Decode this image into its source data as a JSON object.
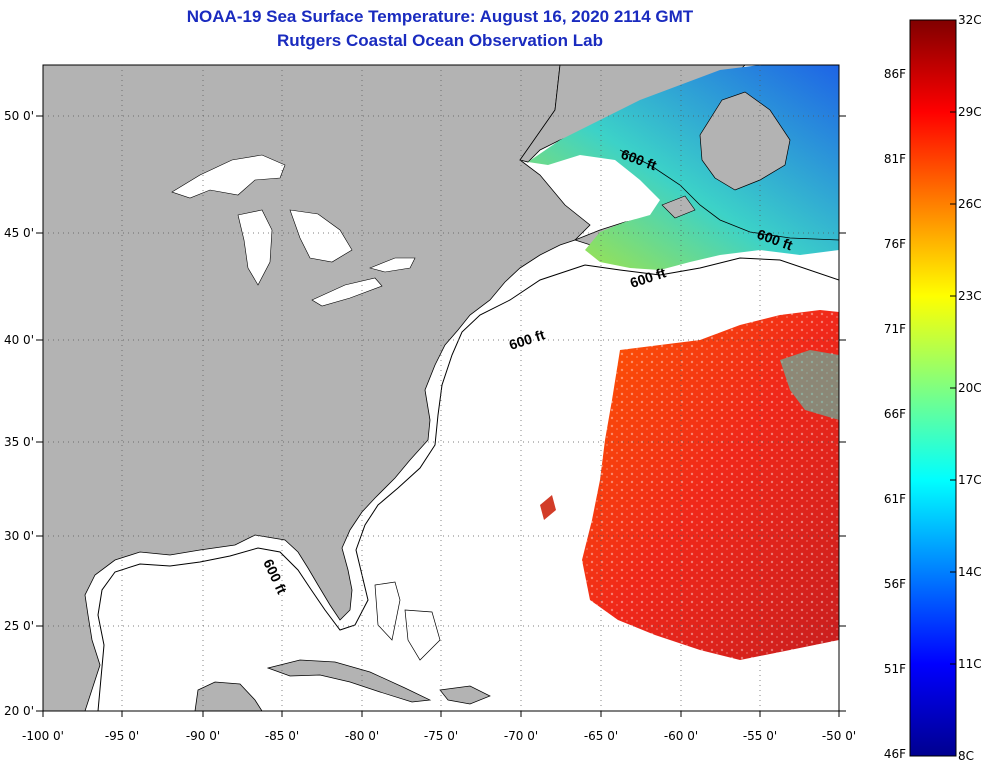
{
  "title": {
    "line1": "NOAA-19 Sea Surface Temperature:  August 16, 2020 2114 GMT",
    "line2": "Rutgers Coastal Ocean Observation Lab"
  },
  "axes": {
    "lon_labels": [
      "-100 0'",
      "-95 0'",
      "-90 0'",
      "-85 0'",
      "-80 0'",
      "-75 0'",
      "-70 0'",
      "-65 0'",
      "-60 0'",
      "-55 0'",
      "-50 0'"
    ],
    "lat_labels": [
      "50 0'",
      "45 0'",
      "40 0'",
      "35 0'",
      "30 0'",
      "25 0'",
      "20 0'"
    ]
  },
  "contour": {
    "label": "600 ft"
  },
  "colorbar": {
    "fahrenheit_labels": [
      "86F",
      "81F",
      "76F",
      "71F",
      "66F",
      "61F",
      "56F",
      "51F",
      "46F"
    ],
    "celsius_labels": [
      "32C",
      "29C",
      "26C",
      "23C",
      "20C",
      "17C",
      "14C",
      "11C",
      "8C"
    ]
  },
  "colors": {
    "land": "#b3b3b3",
    "ocean_nodata": "#ffffff",
    "title": "#1a2bbf"
  }
}
